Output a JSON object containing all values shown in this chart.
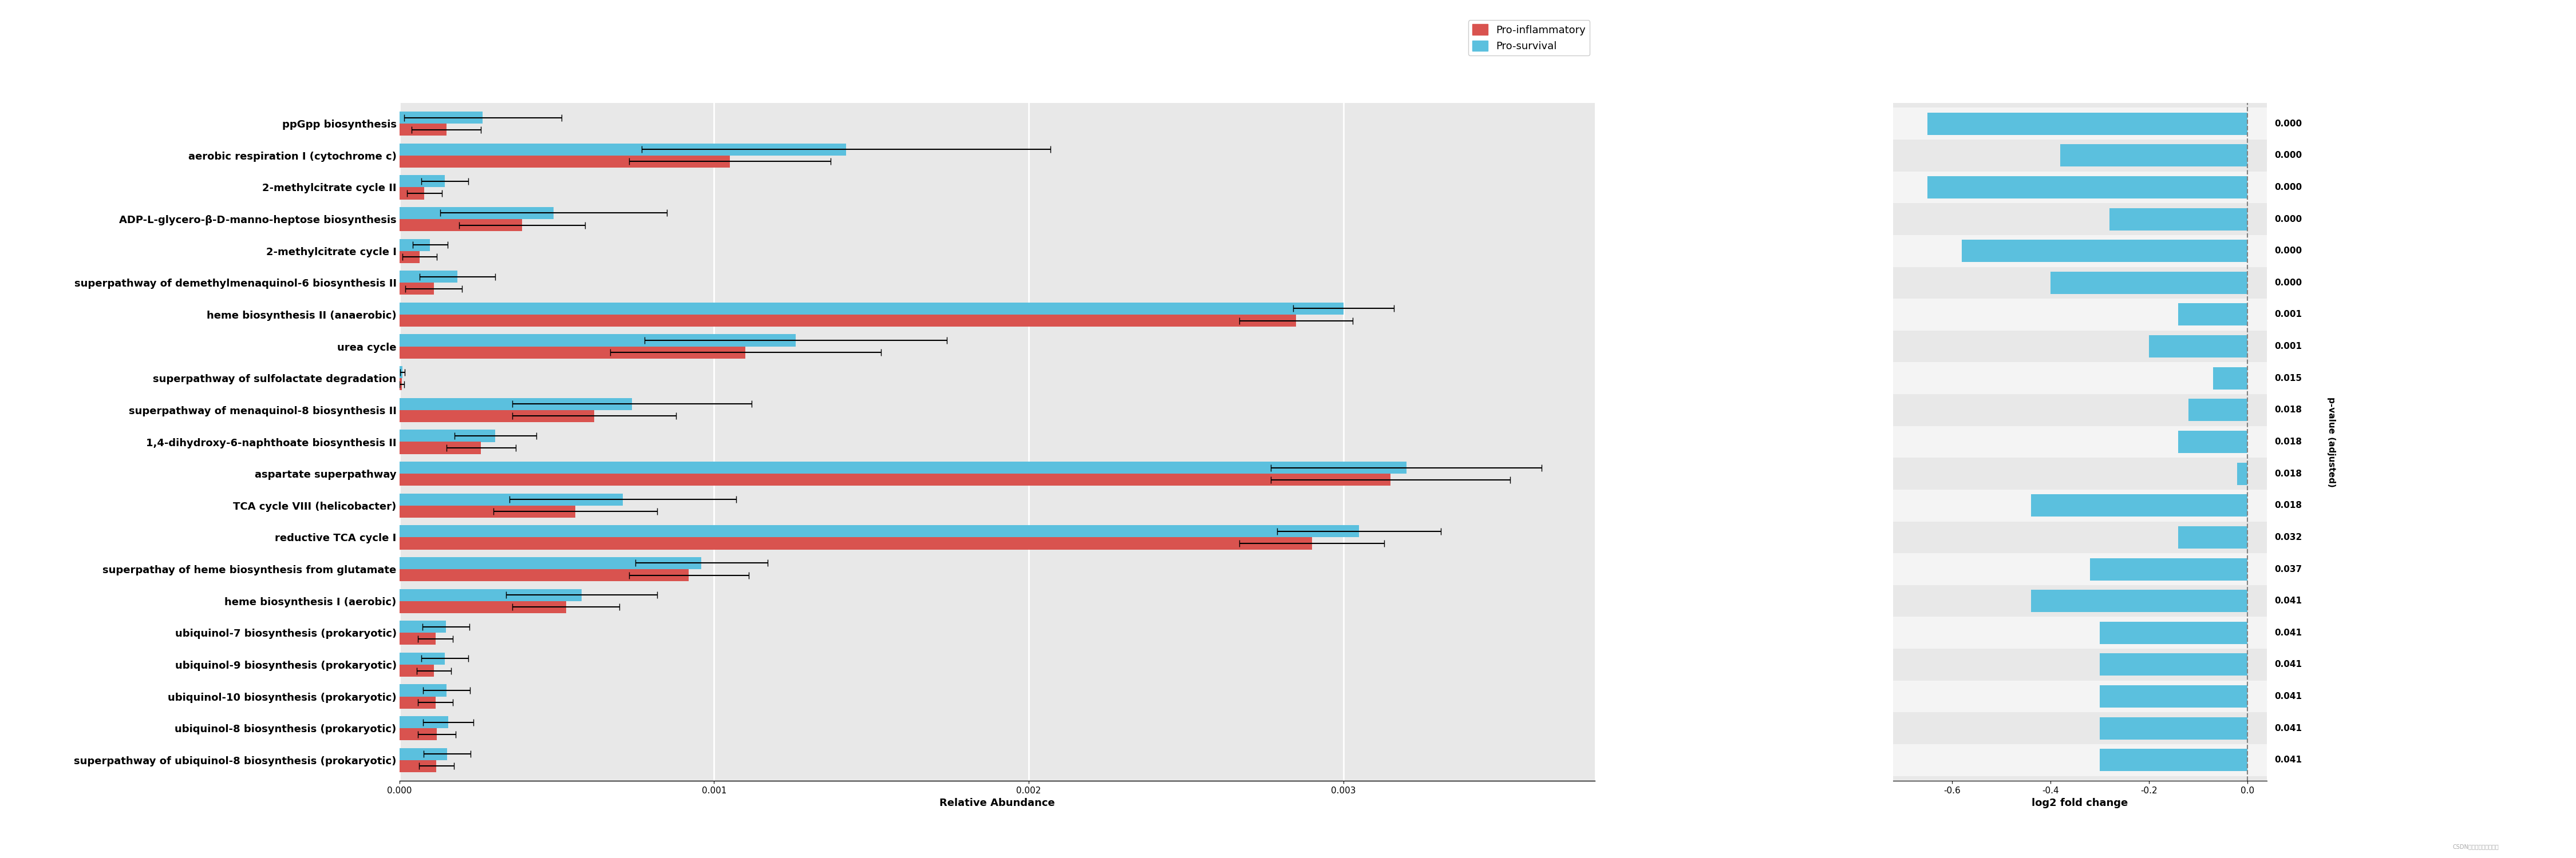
{
  "pathway_labels": [
    "ppGpp biosynthesis",
    "aerobic respiration I (cytochrome c)",
    "2-methylcitrate cycle II",
    "ADP-L-glycero-β-D-manno-heptose biosynthesis",
    "2-methylcitrate cycle I",
    "superpathway of demethylmenaquinol-6 biosynthesis II",
    "heme biosynthesis II (anaerobic)",
    "urea cycle",
    "superpathway of sulfolactate degradation",
    "superpathway of menaquinol-8 biosynthesis II",
    "1,4-dihydroxy-6-naphthoate biosynthesis II",
    "aspartate superpathway",
    "TCA cycle VIII (helicobacter)",
    "reductive TCA cycle I",
    "superpathay of heme biosynthesis from glutamate",
    "heme biosynthesis I (aerobic)",
    "ubiquinol-7 biosynthesis (prokaryotic)",
    "ubiquinol-9 biosynthesis (prokaryotic)",
    "ubiquinol-10 biosynthesis (prokaryotic)",
    "ubiquinol-8 biosynthesis (prokaryotic)",
    "superpathway of ubiquinol-8 biosynthesis (prokaryotic)"
  ],
  "pro_inflammatory": [
    0.00015,
    0.00105,
    8e-05,
    0.00039,
    6.5e-05,
    0.00011,
    0.00285,
    0.0011,
    8e-06,
    0.00062,
    0.00026,
    0.00315,
    0.00056,
    0.0029,
    0.00092,
    0.00053,
    0.000115,
    0.00011,
    0.000115,
    0.00012,
    0.000118
  ],
  "pro_survival": [
    0.000265,
    0.00142,
    0.000145,
    0.00049,
    9.8e-05,
    0.000185,
    0.003,
    0.00126,
    1e-05,
    0.00074,
    0.000305,
    0.0032,
    0.00071,
    0.00305,
    0.00096,
    0.00058,
    0.000148,
    0.000145,
    0.00015,
    0.000155,
    0.000152
  ],
  "pro_inflammatory_err": [
    0.00011,
    0.00032,
    5.5e-05,
    0.0002,
    5.5e-05,
    9e-05,
    0.00018,
    0.00043,
    8e-06,
    0.00026,
    0.00011,
    0.00038,
    0.00026,
    0.00023,
    0.00019,
    0.00017,
    5.5e-05,
    5.5e-05,
    5.5e-05,
    6e-05,
    5.5e-05
  ],
  "pro_survival_err": [
    0.00025,
    0.00065,
    7.5e-05,
    0.00036,
    5.5e-05,
    0.00012,
    0.00016,
    0.00048,
    8e-06,
    0.00038,
    0.00013,
    0.00043,
    0.00036,
    0.00026,
    0.00021,
    0.00024,
    7.5e-05,
    7.5e-05,
    7.5e-05,
    8e-05,
    7.5e-05
  ],
  "log2fc": [
    -0.65,
    -0.38,
    -0.65,
    -0.28,
    -0.58,
    -0.4,
    -0.14,
    -0.2,
    -0.07,
    -0.12,
    -0.14,
    -0.02,
    -0.44,
    -0.14,
    -0.32,
    -0.44,
    -0.3,
    -0.3,
    -0.3,
    -0.3,
    -0.3
  ],
  "pvalues": [
    "0.000",
    "0.000",
    "0.000",
    "0.000",
    "0.000",
    "0.000",
    "0.001",
    "0.001",
    "0.015",
    "0.018",
    "0.018",
    "0.018",
    "0.018",
    "0.032",
    "0.037",
    "0.041",
    "0.041",
    "0.041",
    "0.041",
    "0.041",
    "0.041"
  ],
  "pro_inflammatory_color": "#d9534f",
  "pro_survival_color": "#5bc0de",
  "log2fc_color": "#5bc0de",
  "background_color": "#e8e8e8",
  "white_row_color": "#f0f0f0",
  "bar_height": 0.38,
  "xlim_abundance": [
    0,
    0.0038
  ],
  "xlim_log2fc": [
    -0.72,
    0.04
  ],
  "xlabel_abundance": "Relative Abundance",
  "xlabel_log2fc": "log2 fold change",
  "ylabel_pvalue": "p-value (adjusted)",
  "legend_labels": [
    "Pro-inflammatory",
    "Pro-survival"
  ],
  "label_fontsize": 13,
  "tick_fontsize": 11,
  "pvalue_fontsize": 11,
  "ylabel_fontsize": 11
}
